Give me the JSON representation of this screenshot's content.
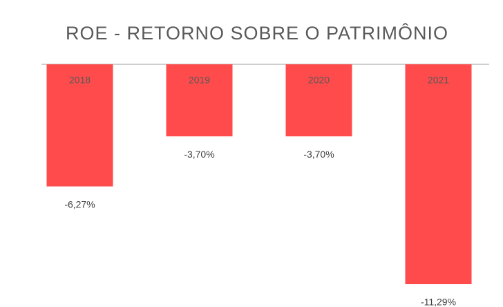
{
  "chart_data": {
    "type": "bar",
    "title": "ROE - RETORNO SOBRE O PATRIMÔNIO",
    "categories": [
      "2018",
      "2019",
      "2020",
      "2021"
    ],
    "values": [
      -6.27,
      -3.7,
      -3.7,
      -11.29
    ],
    "value_labels": [
      "-6,27%",
      "-3,70%",
      "-3,70%",
      "-11,29%"
    ],
    "color": "#ff4b4b"
  }
}
